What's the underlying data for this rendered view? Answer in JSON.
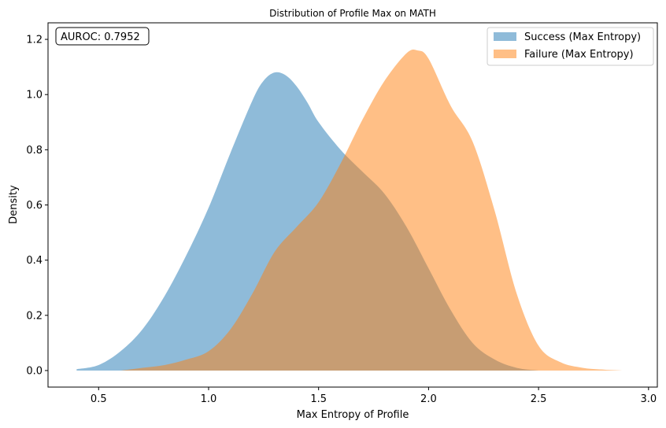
{
  "chart_data": {
    "type": "area",
    "title": "Distribution of Profile Max on MATH",
    "xlabel": "Max Entropy of Profile",
    "ylabel": "Density",
    "xlim": [
      0.27,
      3.04
    ],
    "ylim": [
      -0.06,
      1.26
    ],
    "xticks": [
      0.5,
      1.0,
      1.5,
      2.0,
      2.5,
      3.0
    ],
    "xtick_labels": [
      "0.5",
      "1.0",
      "1.5",
      "2.0",
      "2.5",
      "3.0"
    ],
    "yticks": [
      0.0,
      0.2,
      0.4,
      0.6,
      0.8,
      1.0,
      1.2
    ],
    "ytick_labels": [
      "0.0",
      "0.2",
      "0.4",
      "0.6",
      "0.8",
      "1.0",
      "1.2"
    ],
    "grid": false,
    "legend_position": "top-right",
    "annotation": "AUROC: 0.7952",
    "series": [
      {
        "name": "Success (Max Entropy)",
        "color": "#1f77b4",
        "alpha": 0.5,
        "x": [
          0.4,
          0.5,
          0.6,
          0.7,
          0.8,
          0.9,
          1.0,
          1.1,
          1.2,
          1.25,
          1.3,
          1.35,
          1.4,
          1.45,
          1.5,
          1.6,
          1.7,
          1.8,
          1.9,
          2.0,
          2.1,
          2.2,
          2.3,
          2.4,
          2.5
        ],
        "y": [
          0.005,
          0.02,
          0.07,
          0.15,
          0.27,
          0.42,
          0.59,
          0.79,
          0.98,
          1.05,
          1.08,
          1.07,
          1.03,
          0.97,
          0.9,
          0.8,
          0.72,
          0.64,
          0.52,
          0.37,
          0.22,
          0.1,
          0.04,
          0.01,
          0.0
        ]
      },
      {
        "name": "Failure (Max Entropy)",
        "color": "#ff7f0e",
        "alpha": 0.5,
        "x": [
          0.6,
          0.7,
          0.8,
          0.9,
          1.0,
          1.1,
          1.2,
          1.3,
          1.4,
          1.5,
          1.6,
          1.7,
          1.8,
          1.9,
          1.95,
          2.0,
          2.1,
          2.2,
          2.3,
          2.4,
          2.5,
          2.6,
          2.7,
          2.8,
          2.88
        ],
        "y": [
          0.0,
          0.01,
          0.02,
          0.04,
          0.07,
          0.15,
          0.28,
          0.43,
          0.52,
          0.61,
          0.75,
          0.91,
          1.05,
          1.15,
          1.16,
          1.13,
          0.96,
          0.83,
          0.58,
          0.28,
          0.09,
          0.03,
          0.01,
          0.003,
          0.0
        ]
      }
    ]
  }
}
